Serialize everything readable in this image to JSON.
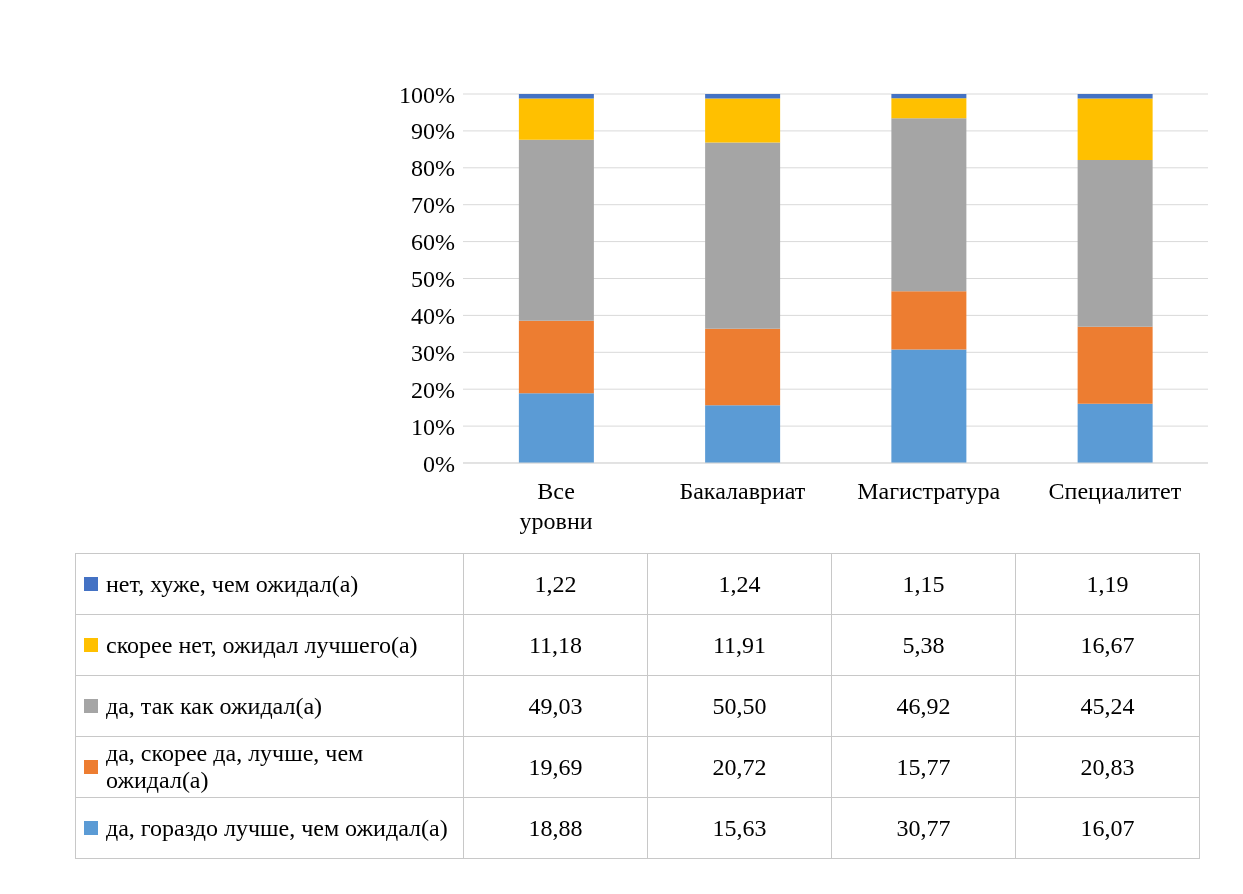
{
  "chart_data": {
    "type": "bar",
    "stacked": true,
    "categories": [
      "Все уровни",
      "Бакалавриат",
      "Магистратура",
      "Специалитет"
    ],
    "ylim": [
      0,
      100
    ],
    "yticks": [
      {
        "value": 0,
        "label": "0%"
      },
      {
        "value": 10,
        "label": "10%"
      },
      {
        "value": 20,
        "label": "20%"
      },
      {
        "value": 30,
        "label": "30%"
      },
      {
        "value": 40,
        "label": "40%"
      },
      {
        "value": 50,
        "label": "50%"
      },
      {
        "value": 60,
        "label": "60%"
      },
      {
        "value": 70,
        "label": "70%"
      },
      {
        "value": 80,
        "label": "80%"
      },
      {
        "value": 90,
        "label": "90%"
      },
      {
        "value": 100,
        "label": "100%"
      }
    ],
    "grid": "y",
    "legend": "bottom",
    "series": [
      {
        "name": "да, гораздо лучше, чем ожидал(а)",
        "color": "#5b9bd5",
        "values": [
          18.88,
          15.63,
          30.77,
          16.07
        ],
        "value_labels": [
          "18,88",
          "15,63",
          "30,77",
          "16,07"
        ]
      },
      {
        "name": "да, скорее да, лучше, чем ожидал(а)",
        "color": "#ed7d31",
        "values": [
          19.69,
          20.72,
          15.77,
          20.83
        ],
        "value_labels": [
          "19,69",
          "20,72",
          "15,77",
          "20,83"
        ]
      },
      {
        "name": "да, так как ожидал(а)",
        "color": "#a5a5a5",
        "values": [
          49.03,
          50.5,
          46.92,
          45.24
        ],
        "value_labels": [
          "49,03",
          "50,50",
          "46,92",
          "45,24"
        ]
      },
      {
        "name": "скорее нет, ожидал лучшего(а)",
        "color": "#ffc000",
        "values": [
          11.18,
          11.91,
          5.38,
          16.67
        ],
        "value_labels": [
          "11,18",
          "11,91",
          "5,38",
          "16,67"
        ]
      },
      {
        "name": "нет, хуже, чем ожидал(а)",
        "color": "#4472c4",
        "values": [
          1.22,
          1.24,
          1.15,
          1.19
        ],
        "value_labels": [
          "1,22",
          "1,24",
          "1,15",
          "1,19"
        ]
      }
    ]
  }
}
